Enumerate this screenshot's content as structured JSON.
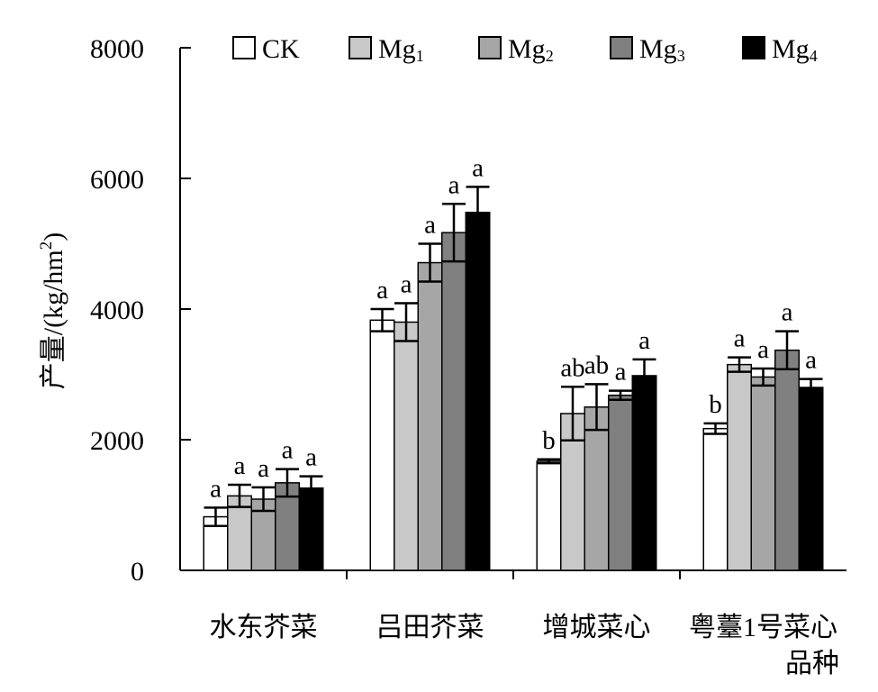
{
  "chart_data": {
    "type": "bar",
    "ylabel": "产量/(kg/hm²)",
    "ylabel_parts": {
      "main": "产量/(kg/hm",
      "sup": "2",
      "close": ")"
    },
    "xlabel": "品种",
    "ylim": [
      0,
      8000
    ],
    "yticks": [
      "0",
      "2000",
      "4000",
      "6000",
      "8000"
    ],
    "ytick_values": [
      0,
      2000,
      4000,
      6000,
      8000
    ],
    "categories": [
      "水东芥菜",
      "吕田芥菜",
      "增城菜心",
      "粤薹1号菜心"
    ],
    "grid": false,
    "legend_position": "top",
    "series": [
      {
        "name": "CK",
        "legend_base": "CK",
        "legend_sub": "",
        "color": "#ffffff",
        "values": [
          820,
          3830,
          1670,
          2170
        ],
        "errors": [
          140,
          170,
          30,
          80
        ],
        "letters": [
          "a",
          "a",
          "b",
          "b"
        ]
      },
      {
        "name": "Mg1",
        "legend_base": "Mg",
        "legend_sub": "1",
        "color": "#c8c8c8",
        "values": [
          1140,
          3800,
          2400,
          3150
        ],
        "errors": [
          170,
          290,
          410,
          110
        ],
        "letters": [
          "a",
          "a",
          "ab",
          "a"
        ]
      },
      {
        "name": "Mg2",
        "legend_base": "Mg",
        "legend_sub": "2",
        "color": "#a6a6a6",
        "values": [
          1090,
          4710,
          2500,
          2960
        ],
        "errors": [
          180,
          290,
          350,
          130
        ],
        "letters": [
          "a",
          "a",
          "ab",
          "a"
        ]
      },
      {
        "name": "Mg3",
        "legend_base": "Mg",
        "legend_sub": "3",
        "color": "#808080",
        "values": [
          1340,
          5170,
          2680,
          3370
        ],
        "errors": [
          210,
          440,
          70,
          290
        ],
        "letters": [
          "a",
          "a",
          "a",
          "a"
        ]
      },
      {
        "name": "Mg4",
        "legend_base": "Mg",
        "legend_sub": "4",
        "color": "#000000",
        "values": [
          1260,
          5480,
          2980,
          2800
        ],
        "errors": [
          180,
          390,
          250,
          130
        ],
        "letters": [
          "a",
          "a",
          "a",
          "a"
        ]
      }
    ]
  }
}
